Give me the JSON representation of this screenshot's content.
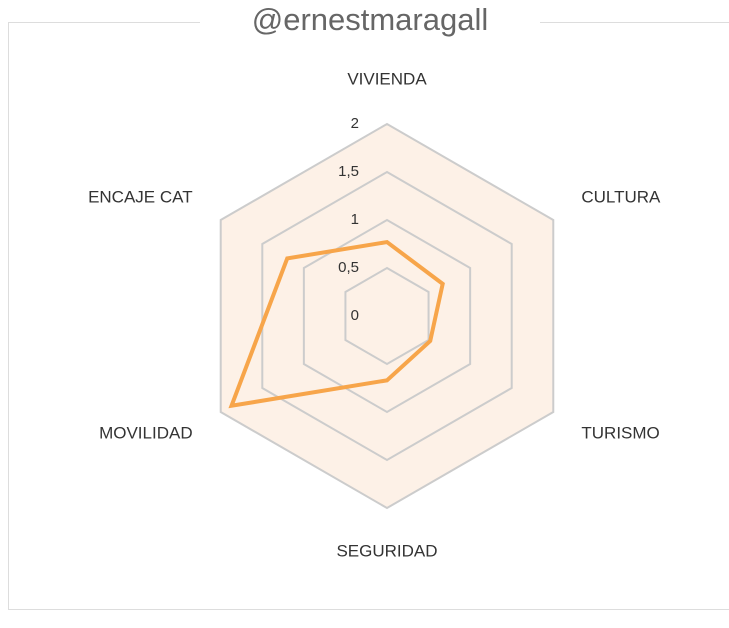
{
  "chart_data": {
    "type": "radar",
    "title": "@ernestmaragall",
    "categories": [
      "VIVIENDA",
      "CULTURA",
      "TURISMO",
      "SEGURIDAD",
      "MOVILIDAD",
      "ENCAJE CAT"
    ],
    "series": [
      {
        "color": "#f7a54a",
        "values": [
          0.77,
          0.67,
          0.52,
          0.67,
          1.87,
          1.2
        ]
      }
    ],
    "ylim": [
      0,
      2
    ],
    "yticks": [
      0,
      {
        "value": 0.5,
        "label": "0,5"
      },
      1,
      {
        "value": 1.5,
        "label": "1,5"
      },
      2
    ],
    "grid": true
  }
}
